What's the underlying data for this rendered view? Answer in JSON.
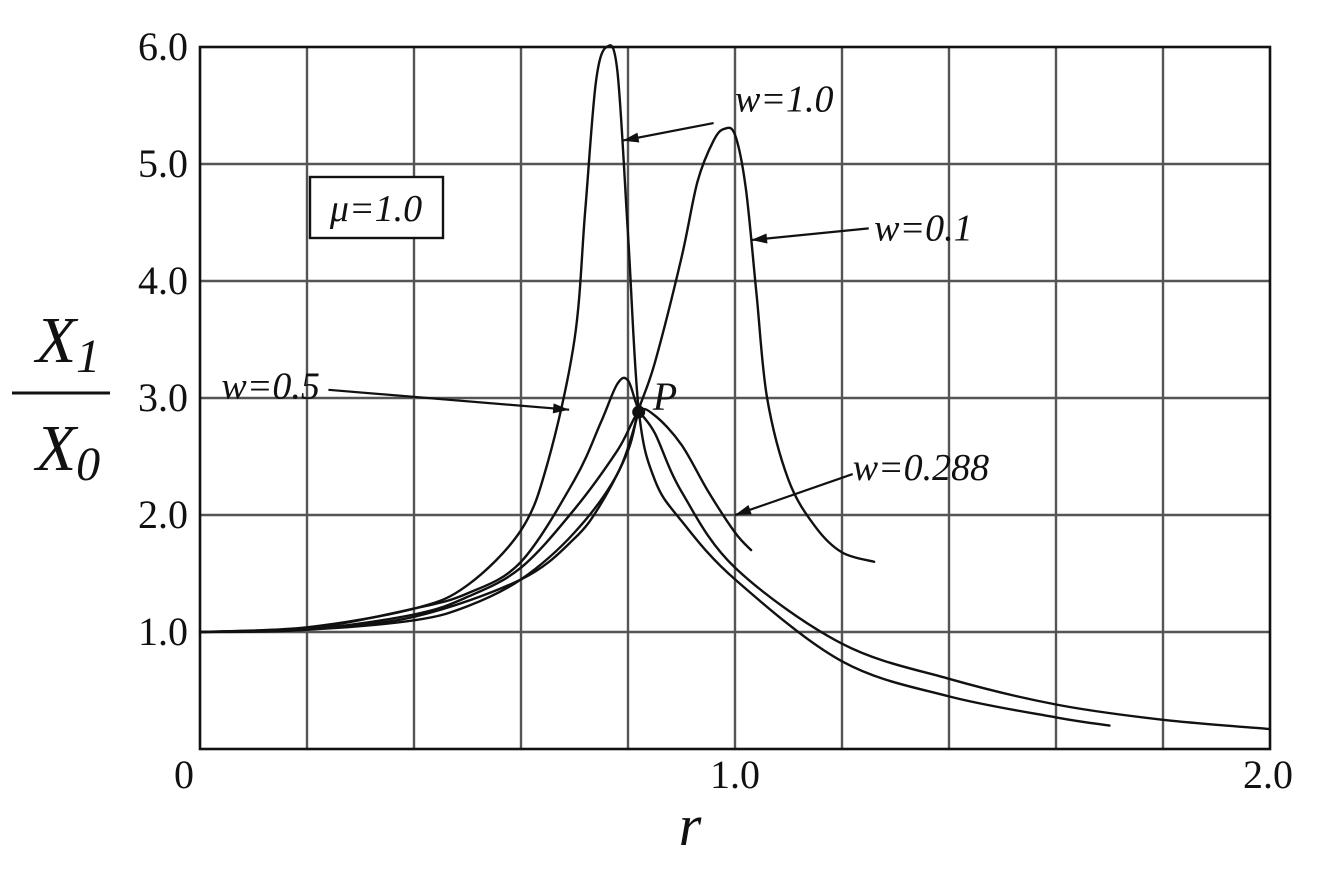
{
  "chart_data": {
    "type": "line",
    "title": "",
    "xlabel": "r",
    "ylabel_top": "X",
    "ylabel_top_sub": "1",
    "ylabel_bottom": "X",
    "ylabel_bottom_sub": "0",
    "xlim": [
      0,
      2.0
    ],
    "ylim": [
      0,
      6.0
    ],
    "x_ticks": [
      {
        "value": 0,
        "label": "0"
      },
      {
        "value": 1.0,
        "label": "1.0"
      },
      {
        "value": 2.0,
        "label": "2.0"
      }
    ],
    "y_ticks": [
      {
        "value": 1.0,
        "label": "1.0"
      },
      {
        "value": 2.0,
        "label": "2.0"
      },
      {
        "value": 3.0,
        "label": "3.0"
      },
      {
        "value": 4.0,
        "label": "4.0"
      },
      {
        "value": 5.0,
        "label": "5.0"
      },
      {
        "value": 6.0,
        "label": "6.0"
      }
    ],
    "x_grid_step": 0.2,
    "y_grid_step": 1.0,
    "grid": true,
    "legend_box": "μ=1.0",
    "series": [
      {
        "name": "w=1.0",
        "x": [
          0,
          0.2,
          0.4,
          0.5,
          0.6,
          0.65,
          0.7,
          0.72,
          0.74,
          0.76,
          0.78,
          0.8,
          0.82,
          0.85,
          0.9,
          1.0,
          1.2,
          1.4,
          1.6,
          1.7
        ],
        "y": [
          1.0,
          1.04,
          1.2,
          1.4,
          1.87,
          2.45,
          3.5,
          4.6,
          5.7,
          6.0,
          5.8,
          4.4,
          2.9,
          2.3,
          1.95,
          1.45,
          0.75,
          0.45,
          0.27,
          0.2
        ]
      },
      {
        "name": "w=0.1",
        "x": [
          0,
          0.2,
          0.4,
          0.6,
          0.7,
          0.75,
          0.8,
          0.82,
          0.85,
          0.9,
          0.93,
          0.96,
          0.98,
          1.0,
          1.02,
          1.04,
          1.06,
          1.1,
          1.15,
          1.2,
          1.26
        ],
        "y": [
          1.0,
          1.03,
          1.13,
          1.45,
          1.8,
          2.1,
          2.55,
          2.9,
          3.3,
          4.2,
          4.85,
          5.2,
          5.3,
          5.25,
          4.8,
          3.9,
          3.0,
          2.3,
          1.9,
          1.68,
          1.6
        ]
      },
      {
        "name": "w=0.5",
        "x": [
          0,
          0.2,
          0.4,
          0.5,
          0.6,
          0.7,
          0.75,
          0.78,
          0.8,
          0.82,
          0.85,
          0.9,
          1.0,
          1.2,
          1.4,
          1.6,
          1.8,
          2.0
        ],
        "y": [
          1.0,
          1.03,
          1.2,
          1.33,
          1.6,
          2.3,
          2.8,
          3.12,
          3.15,
          2.9,
          2.7,
          2.2,
          1.55,
          0.9,
          0.6,
          0.38,
          0.25,
          0.17
        ]
      },
      {
        "name": "w=0.288",
        "x": [
          0,
          0.2,
          0.4,
          0.5,
          0.6,
          0.7,
          0.78,
          0.82,
          0.85,
          0.9,
          0.95,
          1.0,
          1.03
        ],
        "y": [
          1.0,
          1.02,
          1.15,
          1.3,
          1.55,
          2.05,
          2.55,
          2.88,
          2.85,
          2.6,
          2.2,
          1.85,
          1.7
        ]
      },
      {
        "name": "",
        "x": [
          0,
          0.2,
          0.4,
          0.5,
          0.6,
          0.7,
          0.78,
          0.82
        ],
        "y": [
          1.0,
          1.02,
          1.1,
          1.22,
          1.45,
          1.85,
          2.35,
          2.88
        ]
      }
    ],
    "annotations": [
      {
        "text": "w=1.0",
        "tx": 1.0,
        "ty": 5.55,
        "ax": 0.79,
        "ay": 5.2,
        "sx": 0.96,
        "sy": 5.35
      },
      {
        "text": "w=0.1",
        "tx": 1.26,
        "ty": 4.45,
        "ax": 1.03,
        "ay": 4.35,
        "sx": 1.25,
        "sy": 4.45
      },
      {
        "text": "w=0.5",
        "tx": 0.04,
        "ty": 3.1,
        "ax": 0.69,
        "ay": 2.9,
        "sx": 0.24,
        "sy": 3.07
      },
      {
        "text": "w=0.288",
        "tx": 1.22,
        "ty": 2.4,
        "ax": 1.0,
        "ay": 2.0,
        "sx": 1.22,
        "sy": 2.35
      }
    ],
    "point": {
      "label": "P",
      "x": 0.82,
      "y": 2.88
    }
  }
}
